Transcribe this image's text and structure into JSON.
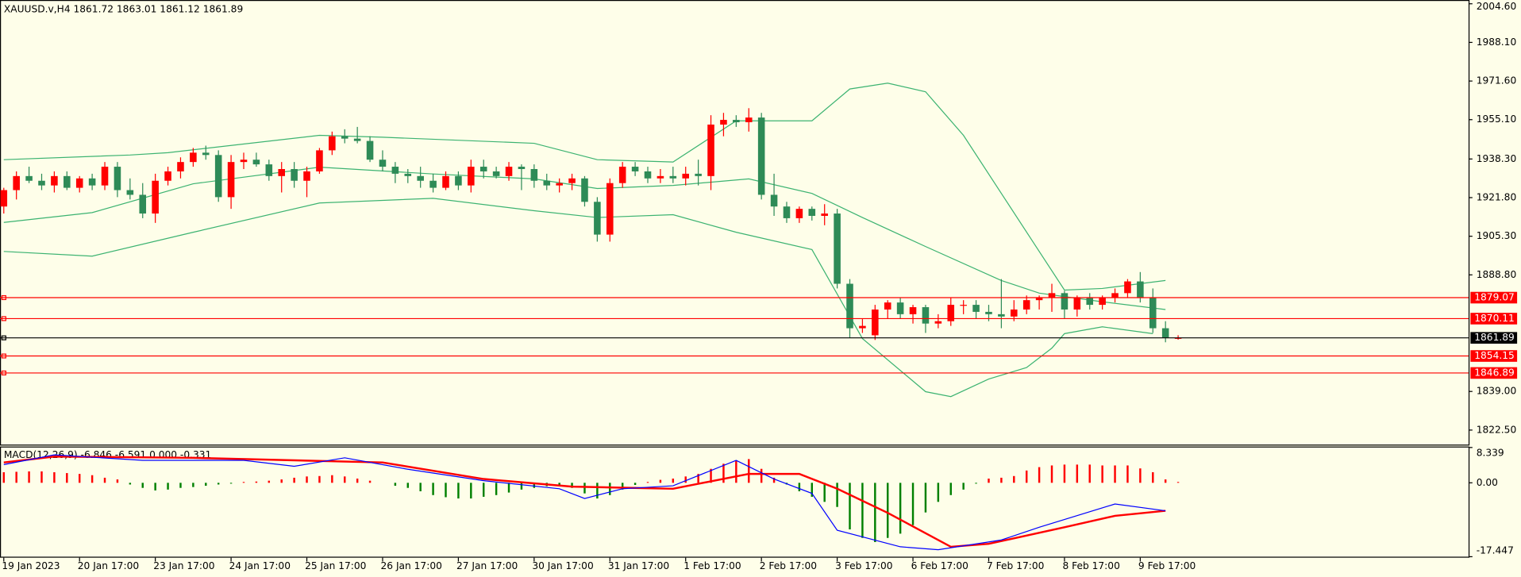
{
  "chart_data": [
    {
      "type": "candlestick",
      "title": "XAUUSD.v,H4  1861.72 1863.01 1861.12 1861.89",
      "up_color": "#ff0000",
      "down_color": "#2e8b57",
      "xlim": [
        -0.3,
        116
      ],
      "ylim": [
        1816.3,
        2005.8
      ],
      "yticks": [
        {
          "value": 2004.6,
          "label": "2004.60"
        },
        {
          "value": 1988.1,
          "label": "1988.10"
        },
        {
          "value": 1971.6,
          "label": "1971.60"
        },
        {
          "value": 1955.1,
          "label": "1955.10"
        },
        {
          "value": 1938.3,
          "label": "1938.30"
        },
        {
          "value": 1921.8,
          "label": "1921.80"
        },
        {
          "value": 1905.3,
          "label": "1905.30"
        },
        {
          "value": 1888.8,
          "label": "1888.80"
        },
        {
          "value": 1839.0,
          "label": "1839.00"
        },
        {
          "value": 1822.5,
          "label": "1822.50"
        }
      ],
      "open": [
        1918,
        1925,
        1931,
        1929,
        1927,
        1931,
        1926,
        1930,
        1927,
        1935,
        1925,
        1923,
        1915,
        1929,
        1933,
        1937,
        1941,
        1940,
        1922,
        1937,
        1938,
        1936,
        1931,
        1934,
        1929,
        1933,
        1942,
        1948,
        1947,
        1946,
        1938,
        1935,
        1932,
        1931,
        1929,
        1926,
        1931,
        1927,
        1935,
        1933,
        1931,
        1935,
        1934,
        1929,
        1927,
        1928,
        1930,
        1920,
        1906,
        1928,
        1935,
        1933,
        1930,
        1931,
        1930,
        1932,
        1931,
        1953,
        1955,
        1954,
        1956,
        1923,
        1918,
        1913,
        1917,
        1914,
        1915,
        1885,
        1866,
        1863,
        1874,
        1877,
        1872,
        1875,
        1868,
        1869,
        1876,
        1876,
        1873,
        1872,
        1871,
        1874,
        1878,
        1879,
        1881,
        1874,
        1879,
        1876,
        1879,
        1881,
        1886,
        1879,
        1866,
        1861.72
      ],
      "high": [
        1926,
        1933,
        1935,
        1932,
        1933,
        1933,
        1931,
        1932,
        1937,
        1937,
        1930,
        1928,
        1932,
        1935,
        1939,
        1943,
        1944,
        1942,
        1940,
        1941,
        1941,
        1938,
        1937,
        1937,
        1935,
        1943,
        1950,
        1951,
        1952,
        1948,
        1942,
        1937,
        1934,
        1935,
        1932,
        1933,
        1933,
        1938,
        1938,
        1935,
        1937,
        1936,
        1936,
        1932,
        1930,
        1932,
        1931,
        1922,
        1930,
        1937,
        1937,
        1935,
        1934,
        1935,
        1935,
        1938,
        1957,
        1958,
        1957,
        1960,
        1958,
        1932,
        1920,
        1918,
        1918,
        1919,
        1917,
        1887,
        1870,
        1876,
        1878,
        1879,
        1876,
        1876,
        1872,
        1879,
        1878,
        1878,
        1876,
        1887,
        1878,
        1880,
        1880,
        1885,
        1882,
        1880,
        1881,
        1880,
        1883,
        1887,
        1890,
        1883,
        1869,
        1863.01
      ],
      "low": [
        1915,
        1921,
        1928,
        1925,
        1924,
        1925,
        1924,
        1925,
        1925,
        1922,
        1921,
        1913,
        1911,
        1927,
        1930,
        1935,
        1938,
        1920,
        1917,
        1934,
        1935,
        1929,
        1924,
        1926,
        1922,
        1932,
        1940,
        1945,
        1945,
        1937,
        1933,
        1928,
        1928,
        1926,
        1924,
        1925,
        1925,
        1924,
        1930,
        1930,
        1929,
        1925,
        1926,
        1925,
        1924,
        1925,
        1918,
        1903,
        1903,
        1926,
        1931,
        1928,
        1928,
        1928,
        1927,
        1927,
        1925,
        1948,
        1952,
        1950,
        1921,
        1914,
        1911,
        1911,
        1912,
        1910,
        1883,
        1862,
        1864,
        1861,
        1870,
        1870,
        1868,
        1864,
        1866,
        1867,
        1872,
        1870,
        1869,
        1866,
        1869,
        1872,
        1874,
        1873,
        1870,
        1871,
        1874,
        1874,
        1877,
        1879,
        1877,
        1864,
        1860,
        1861.12
      ],
      "close": [
        1925,
        1931,
        1929,
        1927,
        1931,
        1926,
        1930,
        1927,
        1935,
        1925,
        1923,
        1915,
        1929,
        1933,
        1937,
        1941,
        1940,
        1922,
        1937,
        1938,
        1936,
        1931,
        1934,
        1929,
        1933,
        1942,
        1948,
        1947,
        1946,
        1938,
        1935,
        1932,
        1931,
        1929,
        1926,
        1931,
        1927,
        1935,
        1933,
        1931,
        1935,
        1934,
        1929,
        1927,
        1928,
        1930,
        1920,
        1906,
        1928,
        1935,
        1933,
        1930,
        1931,
        1930,
        1932,
        1931,
        1953,
        1955,
        1954,
        1956,
        1923,
        1918,
        1913,
        1917,
        1914,
        1915,
        1885,
        1866,
        1867,
        1874,
        1877,
        1872,
        1875,
        1868,
        1869,
        1876,
        1876,
        1873,
        1872,
        1871,
        1874,
        1878,
        1879,
        1881,
        1874,
        1879,
        1876,
        1879,
        1881,
        1886,
        1879,
        1866,
        1862,
        1861.89
      ],
      "lines": [
        {
          "color": "#3cb371",
          "x": [
            0,
            10,
            13,
            25,
            30,
            42,
            47,
            53,
            58,
            64,
            67,
            70,
            73,
            76,
            79,
            82,
            84,
            87,
            92
          ],
          "values": [
            1938,
            1940,
            1941,
            1948.4,
            1947.6,
            1945,
            1938,
            1937,
            1954.6,
            1954.6,
            1968.2,
            1970.7,
            1967,
            1948.4,
            1923.6,
            1898.8,
            1882.3,
            1883,
            1886.4
          ]
        },
        {
          "color": "#3cb371",
          "x": [
            0,
            7,
            15,
            25,
            34,
            42,
            47,
            53,
            59,
            64,
            68,
            73,
            79,
            82,
            87,
            92
          ],
          "values": [
            1911.2,
            1915.4,
            1927.7,
            1934.8,
            1931.9,
            1929.8,
            1925.7,
            1927,
            1929.8,
            1923.6,
            1913.3,
            1900.9,
            1886.4,
            1881,
            1877.3,
            1874
          ]
        },
        {
          "color": "#3cb371",
          "x": [
            0,
            7,
            15,
            25,
            34,
            42,
            47,
            53,
            58,
            64,
            68,
            73,
            75,
            78,
            81,
            83,
            84,
            87,
            91
          ],
          "values": [
            1898.8,
            1896.8,
            1907,
            1919.5,
            1921.5,
            1916.2,
            1913.3,
            1914.5,
            1907,
            1899.6,
            1861.6,
            1838.9,
            1836.8,
            1844.3,
            1849.2,
            1857.5,
            1863.7,
            1866.6,
            1863.7
          ]
        }
      ],
      "hlines": [
        {
          "value": 1879.07,
          "color": "#ff0000"
        },
        {
          "value": 1870.11,
          "color": "#ff0000"
        },
        {
          "value": 1861.89,
          "color": "#000000"
        },
        {
          "value": 1854.15,
          "color": "#ff0000"
        },
        {
          "value": 1846.89,
          "color": "#ff0000"
        }
      ]
    },
    {
      "type": "macd",
      "title": "MACD(12,26,9) -6.846 -6.591 0.000 -0.331",
      "up_color": "#ff0000",
      "down_color": "#008000",
      "xlim": [
        -0.3,
        116
      ],
      "ylim": [
        -17.447,
        8.339
      ],
      "yticks": [
        8.339,
        {
          "value": 0,
          "label": "0.00"
        },
        -17.447
      ],
      "histogram": [
        2.5,
        2.6,
        2.7,
        2.7,
        2.5,
        2.3,
        2.1,
        1.8,
        1.2,
        0.8,
        -0.4,
        -1.2,
        -1.8,
        -1.6,
        -1.2,
        -1.0,
        -0.7,
        -0.4,
        -0.2,
        0.2,
        0.3,
        0.5,
        0.8,
        1.2,
        1.5,
        1.6,
        1.8,
        1.5,
        1.0,
        0.5,
        0,
        -0.7,
        -1.2,
        -2.0,
        -2.9,
        -3.4,
        -3.7,
        -3.7,
        -3.3,
        -2.9,
        -2.3,
        -1.6,
        -1.2,
        -0.8,
        -0.5,
        -1.2,
        -2.5,
        -3.7,
        -2.9,
        -1.6,
        -0.5,
        0.2,
        0.7,
        1.0,
        1.5,
        2.1,
        3.3,
        4.5,
        5.3,
        5.6,
        3.3,
        1.2,
        -0.4,
        -2.0,
        -3.3,
        -4.5,
        -5.7,
        -11,
        -13,
        -14,
        -13,
        -12,
        -10,
        -7,
        -4.5,
        -2.9,
        -1.6,
        -0.2,
        1.0,
        1.2,
        1.6,
        2.9,
        3.7,
        4.1,
        4.3,
        4.3,
        4.3,
        4.1,
        4.1,
        4.1,
        3.4,
        2.5,
        0.8,
        0.2
      ],
      "lines": [
        {
          "color": "#ff0000",
          "width": 2,
          "x": [
            0,
            4,
            15,
            30,
            38,
            45,
            53,
            59,
            63,
            66,
            70,
            75,
            78,
            84,
            88,
            92
          ],
          "values": [
            4.8,
            6.2,
            5.9,
            4.8,
            0.9,
            -0.9,
            -1.4,
            2.1,
            2.1,
            -1.4,
            -7.1,
            -15.1,
            -14.4,
            -10.5,
            -7.8,
            -6.6
          ]
        },
        {
          "color": "#0000ff",
          "width": 1,
          "x": [
            0,
            4,
            11,
            19,
            23,
            27,
            32,
            38,
            44,
            46,
            49,
            53,
            58,
            61,
            64,
            66,
            71,
            74,
            79,
            82,
            88,
            92
          ],
          "values": [
            4.3,
            6.6,
            5.3,
            5.3,
            3.9,
            5.9,
            3.2,
            0.5,
            -1.4,
            -3.7,
            -1.4,
            -0.7,
            5.3,
            0.9,
            -2.5,
            -11.2,
            -15.1,
            -15.8,
            -13.5,
            -10.5,
            -5.0,
            -6.6
          ]
        }
      ],
      "xticks": [
        {
          "value": 0,
          "label": "19 Jan 2023"
        },
        {
          "value": 6,
          "label": "20 Jan 17:00"
        },
        {
          "value": 12,
          "label": "23 Jan 17:00"
        },
        {
          "value": 18,
          "label": "24 Jan 17:00"
        },
        {
          "value": 24,
          "label": "25 Jan 17:00"
        },
        {
          "value": 30,
          "label": "26 Jan 17:00"
        },
        {
          "value": 36,
          "label": "27 Jan 17:00"
        },
        {
          "value": 42,
          "label": "30 Jan 17:00"
        },
        {
          "value": 48,
          "label": "31 Jan 17:00"
        },
        {
          "value": 54,
          "label": "1 Feb 17:00"
        },
        {
          "value": 60,
          "label": "2 Feb 17:00"
        },
        {
          "value": 66,
          "label": "3 Feb 17:00"
        },
        {
          "value": 72,
          "label": "6 Feb 17:00"
        },
        {
          "value": 78,
          "label": "7 Feb 17:00"
        },
        {
          "value": 84,
          "label": "8 Feb 17:00"
        },
        {
          "value": 90,
          "label": "9 Feb 17:00"
        }
      ]
    }
  ]
}
